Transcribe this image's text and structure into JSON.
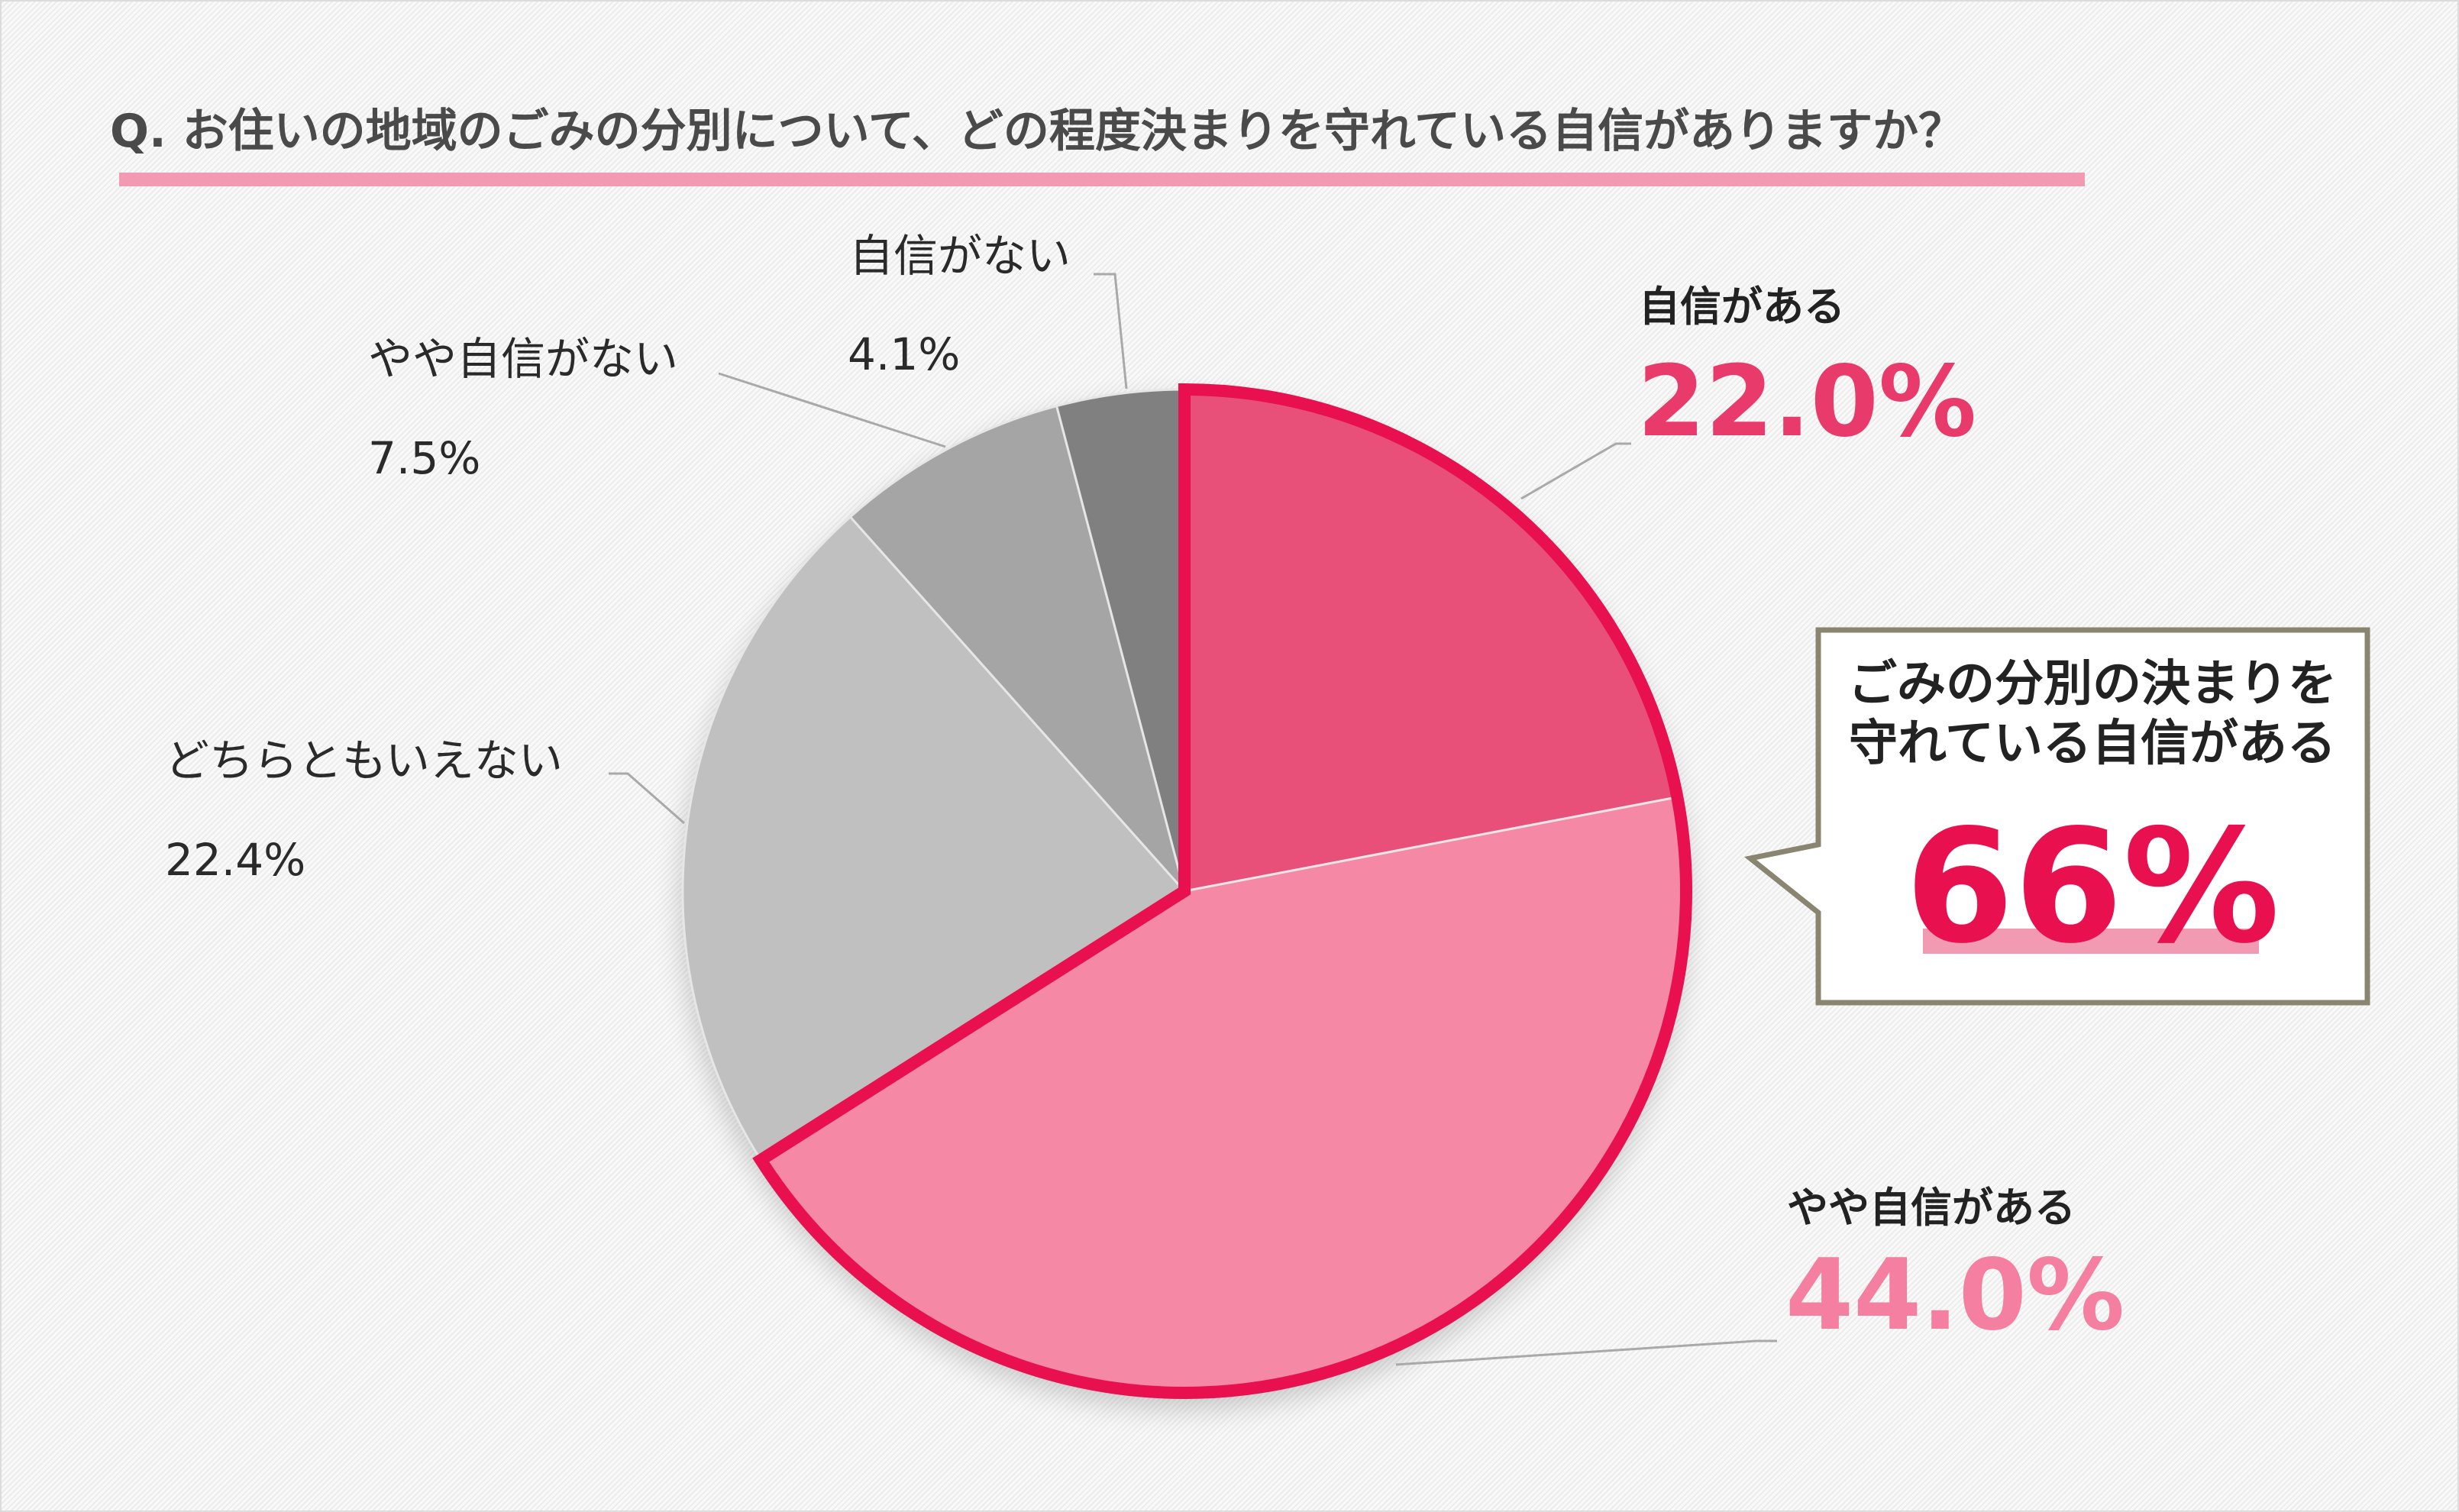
{
  "colors": {
    "accent": "#e8104f",
    "title_bar": "#f29ab2",
    "callout_border": "#8a8570"
  },
  "chart_data": {
    "type": "pie",
    "title": "Q. お住いの地域のごみの分別について、どの程度決まりを守れている自信がありますか？",
    "start": "12 o'clock, clockwise",
    "slices": [
      {
        "label": "自信がある",
        "value": 22.0,
        "display": "22.0%",
        "color": "#e8507a"
      },
      {
        "label": "やや自信がある",
        "value": 44.0,
        "display": "44.0%",
        "color": "#f588a4"
      },
      {
        "label": "どちらともいえない",
        "value": 22.4,
        "display": "22.4%",
        "color": "#c0c0c0"
      },
      {
        "label": "やや自信がない",
        "value": 7.5,
        "display": "7.5%",
        "color": "#a5a5a5"
      },
      {
        "label": "自信がない",
        "value": 4.1,
        "display": "4.1%",
        "color": "#808080"
      }
    ],
    "highlight": {
      "slices": [
        0,
        1
      ],
      "line1": "ごみの分別の決まりを",
      "line2": "守れている自信がある",
      "value": "66%"
    }
  }
}
